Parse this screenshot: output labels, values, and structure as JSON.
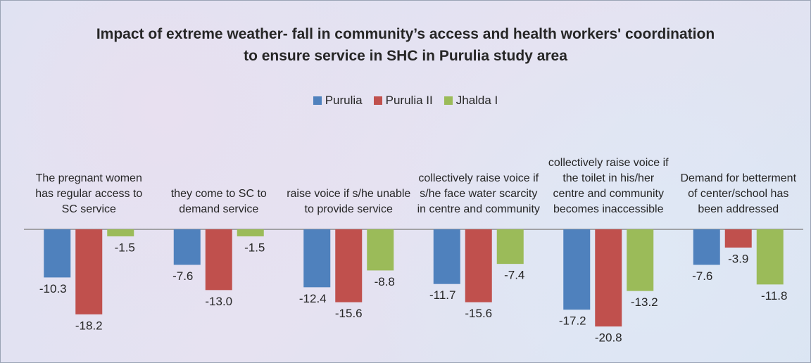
{
  "chart_data": {
    "type": "bar",
    "title": "Impact of extreme weather- fall in community’s access and health workers' coordination to ensure service in SHC in Purulia study area",
    "categories": [
      "The pregnant women has regular access to SC service",
      "they come to SC to demand service",
      "raise voice if s/he unable to provide service",
      "collectively raise voice if s/he face water scarcity in centre and community",
      "collectively raise voice if the toilet in his/her centre and community becomes inaccessible",
      "Demand for betterment of center/school has been addressed"
    ],
    "series": [
      {
        "name": "Purulia",
        "color": "#4f81bd",
        "values": [
          -10.3,
          -7.6,
          -12.4,
          -11.7,
          -17.2,
          -7.6
        ],
        "value_labels": [
          "-10.3",
          "-7.6",
          "-12.4",
          "-11.7",
          "-17.2",
          "-7.6"
        ]
      },
      {
        "name": "Purulia II",
        "color": "#c0504d",
        "values": [
          -18.2,
          -13.0,
          -15.6,
          -15.6,
          -20.8,
          -3.9
        ],
        "value_labels": [
          "-18.2",
          "-13.0",
          "-15.6",
          "-15.6",
          "-20.8",
          "-3.9"
        ]
      },
      {
        "name": "Jhalda I",
        "color": "#9bbb59",
        "values": [
          -1.5,
          -1.5,
          -8.8,
          -7.4,
          -13.2,
          -11.8
        ],
        "value_labels": [
          "-1.5",
          "-1.5",
          "-8.8",
          "-7.4",
          "-13.2",
          "-11.8"
        ]
      }
    ],
    "ylim": [
      -25,
      0
    ],
    "legend": "top"
  }
}
